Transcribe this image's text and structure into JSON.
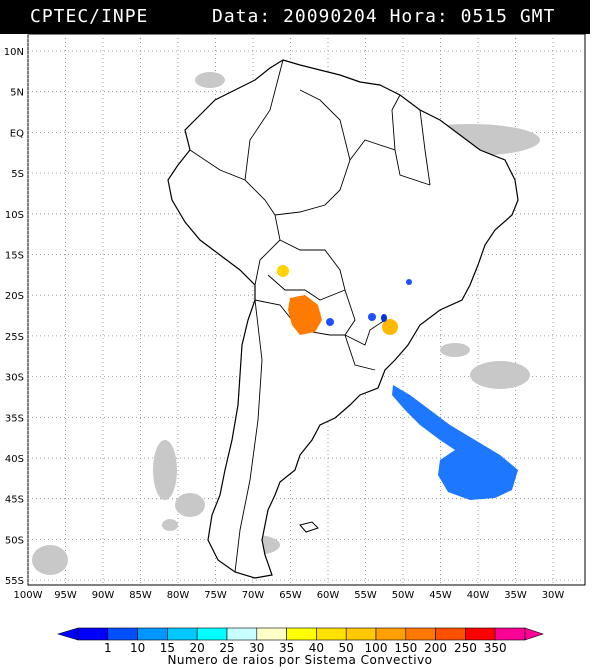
{
  "header": {
    "org": "CPTEC/INPE",
    "date_label": "Data:",
    "date": "20090204",
    "hour_label": "Hora:",
    "hour": "0515",
    "tz": "GMT"
  },
  "map": {
    "lat_labels": [
      "10N",
      "5N",
      "EQ",
      "5S",
      "10S",
      "15S",
      "20S",
      "25S",
      "30S",
      "35S",
      "40S",
      "45S",
      "50S",
      "55S"
    ],
    "lon_labels": [
      "100W",
      "95W",
      "90W",
      "85W",
      "80W",
      "75W",
      "70W",
      "65W",
      "60W",
      "55W",
      "50W",
      "45W",
      "40W",
      "35W",
      "30W"
    ],
    "colors": {
      "cloud": "#c8c8c8",
      "orange": "#ff7a00",
      "yellow": "#ffd400",
      "gold": "#ffb800",
      "blue": "#1e78ff",
      "dark_blue": "#0033dd"
    }
  },
  "legend": {
    "ticks": [
      "1",
      "10",
      "15",
      "20",
      "25",
      "30",
      "35",
      "40",
      "50",
      "100",
      "150",
      "200",
      "250",
      "350"
    ],
    "title": "Numero de raios por Sistema Convectivo",
    "colors": [
      "#0000ff",
      "#0050ff",
      "#0096ff",
      "#00c8ff",
      "#00ffff",
      "#c8ffff",
      "#ffffc8",
      "#ffff00",
      "#ffe100",
      "#ffc800",
      "#ffa000",
      "#ff7800",
      "#ff5000",
      "#ff0000",
      "#ff0096"
    ]
  }
}
